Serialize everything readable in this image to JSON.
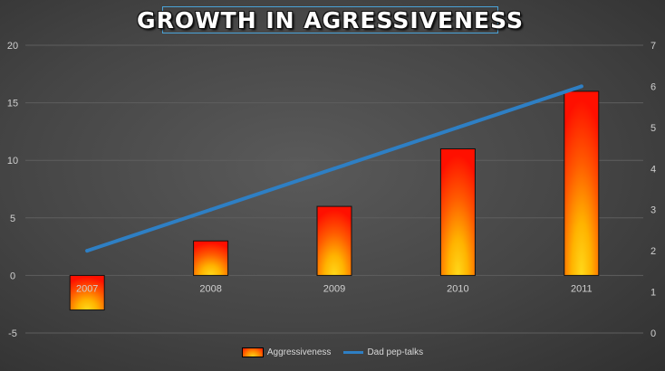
{
  "chart_data": {
    "type": "bar",
    "title": "GROWTH IN AGRESSIVENESS",
    "categories": [
      "2007",
      "2008",
      "2009",
      "2010",
      "2011"
    ],
    "series": [
      {
        "name": "Aggressiveness",
        "type": "bar",
        "axis": "left",
        "values": [
          -3,
          3,
          6,
          11,
          16
        ],
        "color": "#ff3300"
      },
      {
        "name": "Dad pep-talks",
        "type": "line",
        "axis": "right",
        "values": [
          2,
          3,
          4,
          5,
          6
        ],
        "color": "#2e7fc4"
      }
    ],
    "ylim": [
      -5,
      20
    ],
    "yticks": [
      "-5",
      "0",
      "5",
      "10",
      "15",
      "20"
    ],
    "y2lim": [
      0,
      7
    ],
    "y2ticks": [
      "0",
      "1",
      "2",
      "3",
      "4",
      "5",
      "6",
      "7"
    ],
    "grid": true,
    "legend": "bottom"
  },
  "colors": {
    "grid": "#5e5e5e",
    "tick_text": "#d0d0d0",
    "title_border": "#4aa3d8"
  }
}
